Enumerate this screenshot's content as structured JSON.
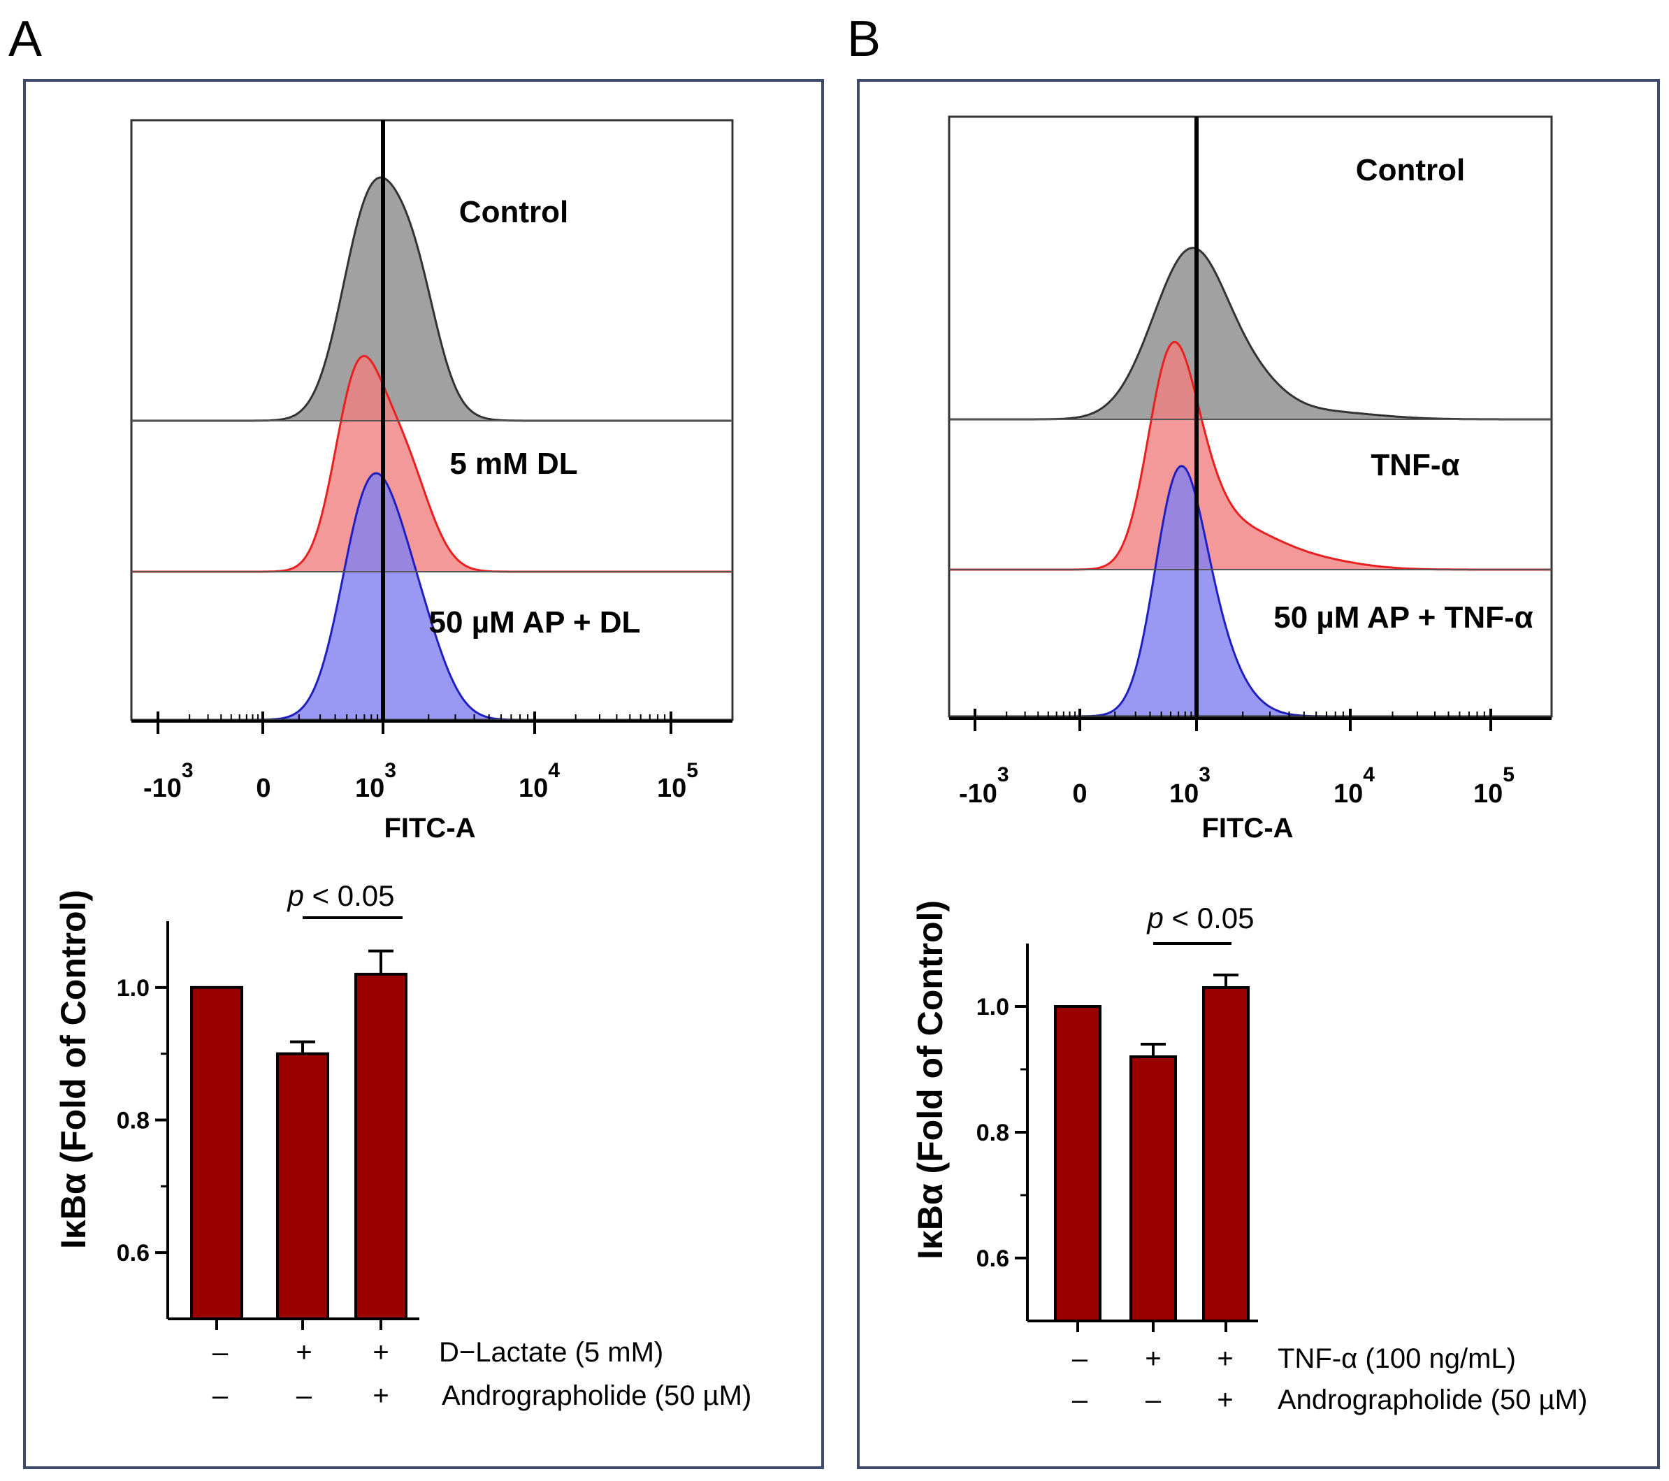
{
  "panels": [
    {
      "letter": "A",
      "histogram": {
        "xlabel": "FITC-A",
        "ticks": [
          {
            "base": "-10",
            "exp": "3"
          },
          {
            "base": "0",
            "exp": ""
          },
          {
            "base": "10",
            "exp": "3"
          },
          {
            "base": "10",
            "exp": "4"
          },
          {
            "base": "10",
            "exp": "5"
          }
        ],
        "labels": [
          "Control",
          "5 mM DL",
          "50 µM  AP + DL"
        ],
        "colors": [
          "#8a8a8a",
          "#f08080",
          "#8080f0"
        ],
        "line_colors": [
          "#333333",
          "#e82020",
          "#2020c0"
        ]
      },
      "bar_chart": {
        "ylabel": "IκBα (Fold of Control)",
        "yticks": [
          "0.6",
          "0.8",
          "1.0"
        ],
        "pvalue_p": "p",
        "pvalue_rest": " < 0.05",
        "row1_label": "D−Lactate (5 mM)",
        "row2_label": "Andrographolide (50  µM)",
        "row1_signs": [
          "–",
          "+",
          "+"
        ],
        "row2_signs": [
          "–",
          "–",
          "+"
        ]
      }
    },
    {
      "letter": "B",
      "histogram": {
        "xlabel": "FITC-A",
        "ticks": [
          {
            "base": "-10",
            "exp": "3"
          },
          {
            "base": "0",
            "exp": ""
          },
          {
            "base": "10",
            "exp": "3"
          },
          {
            "base": "10",
            "exp": "4"
          },
          {
            "base": "10",
            "exp": "5"
          }
        ],
        "labels": [
          "Control",
          "TNF-α",
          "50 µM  AP + TNF-α"
        ],
        "colors": [
          "#8a8a8a",
          "#f08080",
          "#8080f0"
        ],
        "line_colors": [
          "#333333",
          "#e82020",
          "#2020c0"
        ]
      },
      "bar_chart": {
        "ylabel": "IκBα (Fold of Control)",
        "yticks": [
          "0.6",
          "0.8",
          "1.0"
        ],
        "pvalue_p": "p",
        "pvalue_rest": " < 0.05",
        "row1_label": "TNF-α (100 ng/mL)",
        "row2_label": "Andrographolide (50 µM)",
        "row1_signs": [
          "–",
          "+",
          "+"
        ],
        "row2_signs": [
          "–",
          "–",
          "+"
        ]
      }
    }
  ],
  "chart_data": [
    {
      "panel": "A",
      "type": "bar",
      "title": "",
      "xlabel": "",
      "ylabel": "IκBα (Fold of Control)",
      "ylim": [
        0.5,
        1.1
      ],
      "categories": [
        "Control",
        "D-Lactate",
        "D-Lactate + Andrographolide"
      ],
      "values": [
        1.0,
        0.9,
        1.02
      ],
      "errors": [
        0.0,
        0.018,
        0.035
      ],
      "bar_color": "#9b0000",
      "annotation": "p < 0.05 (D-Lactate vs D-Lactate + Andrographolide)"
    },
    {
      "panel": "B",
      "type": "bar",
      "title": "",
      "xlabel": "",
      "ylabel": "IκBα (Fold of Control)",
      "ylim": [
        0.5,
        1.1
      ],
      "categories": [
        "Control",
        "TNF-α",
        "TNF-α + Andrographolide"
      ],
      "values": [
        1.0,
        0.92,
        1.03
      ],
      "errors": [
        0.0,
        0.02,
        0.02
      ],
      "bar_color": "#9b0000",
      "annotation": "p < 0.05 (TNF-α vs TNF-α + Andrographolide)"
    }
  ]
}
